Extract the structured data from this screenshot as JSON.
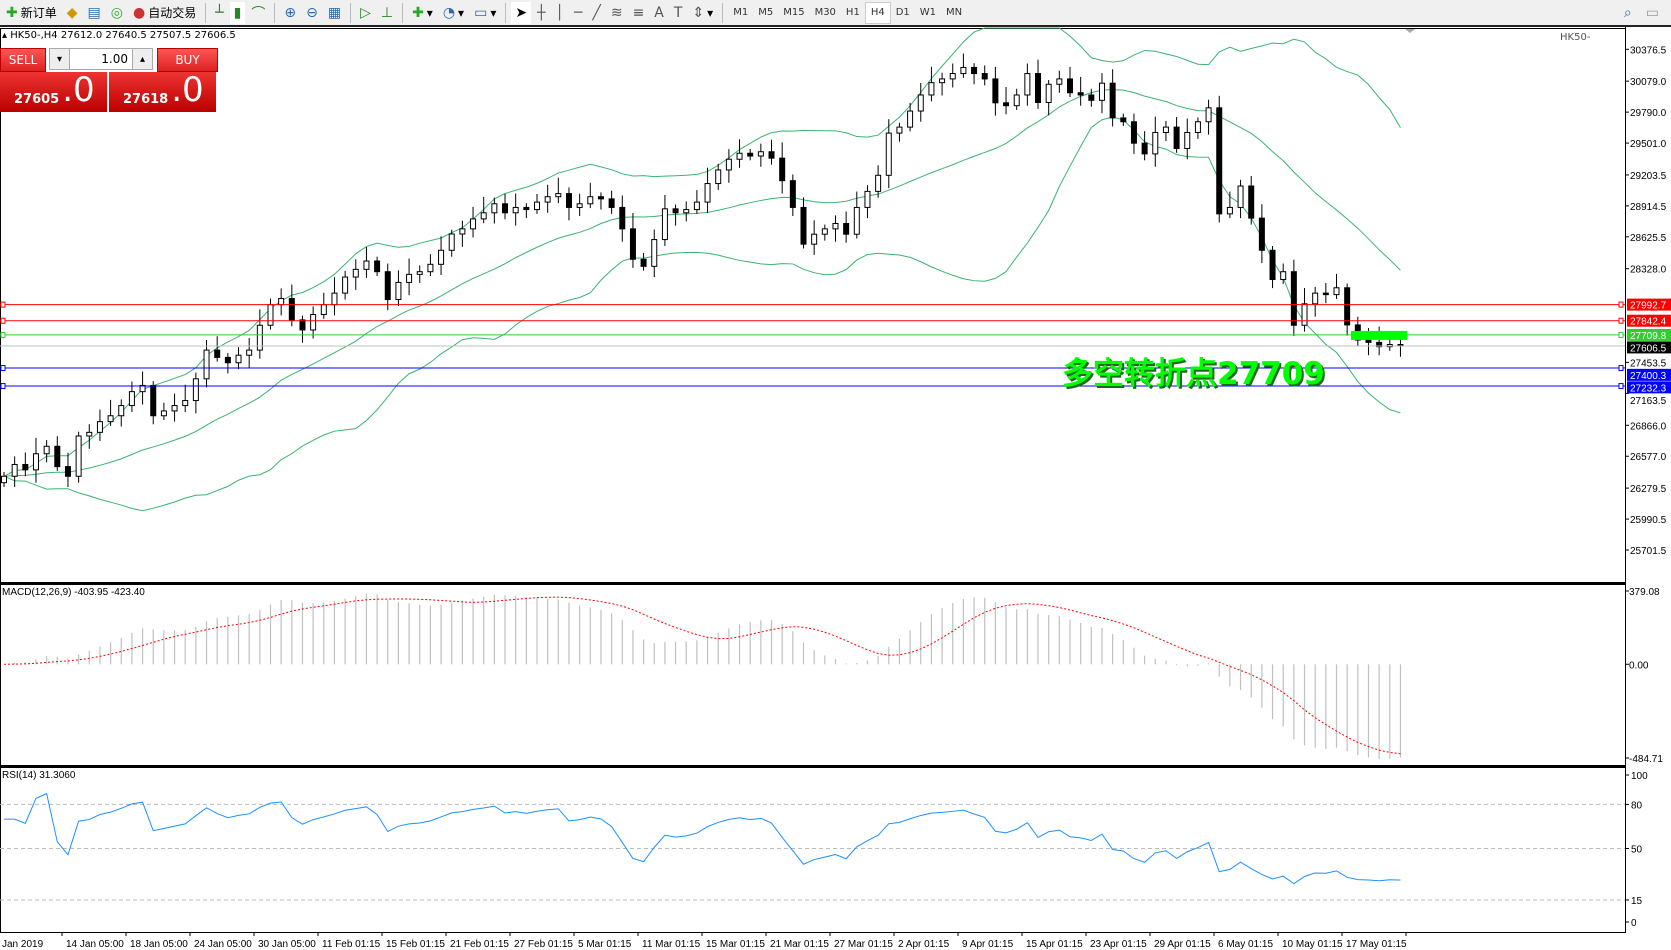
{
  "toolbar": {
    "new_order": "新订单",
    "auto_trading": "自动交易",
    "icons": [
      "new-order-icon",
      "market-watch-icon",
      "data-window-icon",
      "navigator-icon",
      "auto-trading-icon",
      "bar-chart-icon",
      "candlestick-icon",
      "line-chart-icon",
      "zoom-in-icon",
      "zoom-out-icon",
      "tile-windows-icon",
      "auto-scroll-icon",
      "chart-shift-icon",
      "indicators-icon",
      "periods-icon",
      "templates-icon",
      "cursor-icon",
      "crosshair-icon",
      "vertical-line-icon",
      "horizontal-line-icon",
      "trendline-icon",
      "fibonacci-icon",
      "channel-icon",
      "text-icon",
      "text-label-icon",
      "arrows-icon"
    ],
    "timeframes": [
      "M1",
      "M5",
      "M15",
      "M30",
      "H1",
      "H4",
      "D1",
      "W1",
      "MN"
    ],
    "active_timeframe": "H4"
  },
  "chart": {
    "info": "HK50-,H4  27612.0 27640.5 27507.5 27606.5",
    "sell_label": "SELL",
    "buy_label": "BUY",
    "lot": "1.00",
    "sell_price_main": "27605",
    "sell_price_frac": ".0",
    "buy_price_main": "27618",
    "buy_price_frac": ".0",
    "annotation": "多空转折点27709",
    "annotation_color": "#00ff00"
  },
  "chart_data": {
    "type": "candlestick",
    "symbol": "HK50-",
    "timeframe": "H4",
    "ylim": [
      25701.5,
      30376.5
    ],
    "price_ticks": [
      "30376.5",
      "30079.0",
      "29790.0",
      "29501.0",
      "29203.5",
      "28914.5",
      "28625.5",
      "28328.0",
      "27453.5",
      "27163.5",
      "26866.0",
      "26577.0",
      "26279.5",
      "25990.5",
      "25701.5"
    ],
    "closes": [
      26390,
      26500,
      26450,
      26600,
      26670,
      26480,
      26390,
      26766,
      26800,
      26900,
      26955,
      27050,
      27180,
      27238,
      26955,
      27000,
      27050,
      27097,
      27300,
      27568,
      27500,
      27450,
      27520,
      27568,
      27800,
      27992,
      28050,
      27850,
      27756,
      27900,
      27992,
      28100,
      28250,
      28322,
      28400,
      28300,
      28040,
      28200,
      28275,
      28300,
      28369,
      28500,
      28652,
      28700,
      28793,
      28850,
      28934,
      28850,
      28900,
      28880,
      28950,
      29000,
      29029,
      28900,
      28934,
      29000,
      28980,
      28900,
      28700,
      28416,
      28350,
      28600,
      28887,
      28850,
      28880,
      28950,
      29123,
      29250,
      29350,
      29406,
      29380,
      29420,
      29360,
      29150,
      28900,
      28557,
      28650,
      28700,
      28750,
      28650,
      28900,
      29050,
      29200,
      29594,
      29650,
      29800,
      29950,
      30065,
      30100,
      30150,
      30207,
      30150,
      30100,
      29877,
      29850,
      29950,
      30150,
      29880,
      30050,
      30100,
      29971,
      29950,
      29900,
      30060,
      29736,
      29700,
      29500,
      29400,
      29600,
      29650,
      29450,
      29600,
      29700,
      29830,
      28840,
      28900,
      29100,
      28800,
      28500,
      28227,
      28300,
      27800,
      28000,
      28100,
      28086,
      28150,
      27803,
      27662,
      27640,
      27600,
      27620,
      27606
    ],
    "hlines": [
      {
        "value": 27992.7,
        "label": "27992.7",
        "color": "#ff0000"
      },
      {
        "value": 27842.4,
        "label": "27842.4",
        "color": "#ff0000"
      },
      {
        "value": 27709.8,
        "label": "27709.8",
        "color": "#33cc33"
      },
      {
        "value": 27606.5,
        "label": "27606.5",
        "color": "#c0c0c0",
        "label_bg": "#000000"
      },
      {
        "value": 27400.3,
        "label": "27400.3",
        "color": "#0000ff"
      },
      {
        "value": 27232.3,
        "label": "27232.3",
        "color": "#0000ff"
      }
    ],
    "bands_color": "#3cb371",
    "time_labels": [
      "Jan 2019",
      "14 Jan 05:00",
      "18 Jan 05:00",
      "24 Jan 05:00",
      "30 Jan 05:00",
      "11 Feb 01:15",
      "15 Feb 01:15",
      "21 Feb 01:15",
      "27 Feb 01:15",
      "5 Mar 01:15",
      "11 Mar 01:15",
      "15 Mar 01:15",
      "21 Mar 01:15",
      "27 Mar 01:15",
      "2 Apr 01:15",
      "9 Apr 01:15",
      "15 Apr 01:15",
      "23 Apr 01:15",
      "29 Apr 01:15",
      "6 May 01:15",
      "10 May 01:15",
      "17 May 01:15"
    ],
    "macd": {
      "label": "MACD(12,26,9) -403.95 -423.40",
      "max": "379.08",
      "zero": "0.00",
      "min": "-484.71",
      "max_val": 379.08,
      "min_val": -484.71,
      "signal_color": "#ff0000",
      "hist_color": "#c0c0c0"
    },
    "rsi": {
      "label": "RSI(14) 31.3060",
      "levels": [
        "100",
        "80",
        "50",
        "15",
        "0"
      ],
      "color": "#1e90ff"
    }
  }
}
